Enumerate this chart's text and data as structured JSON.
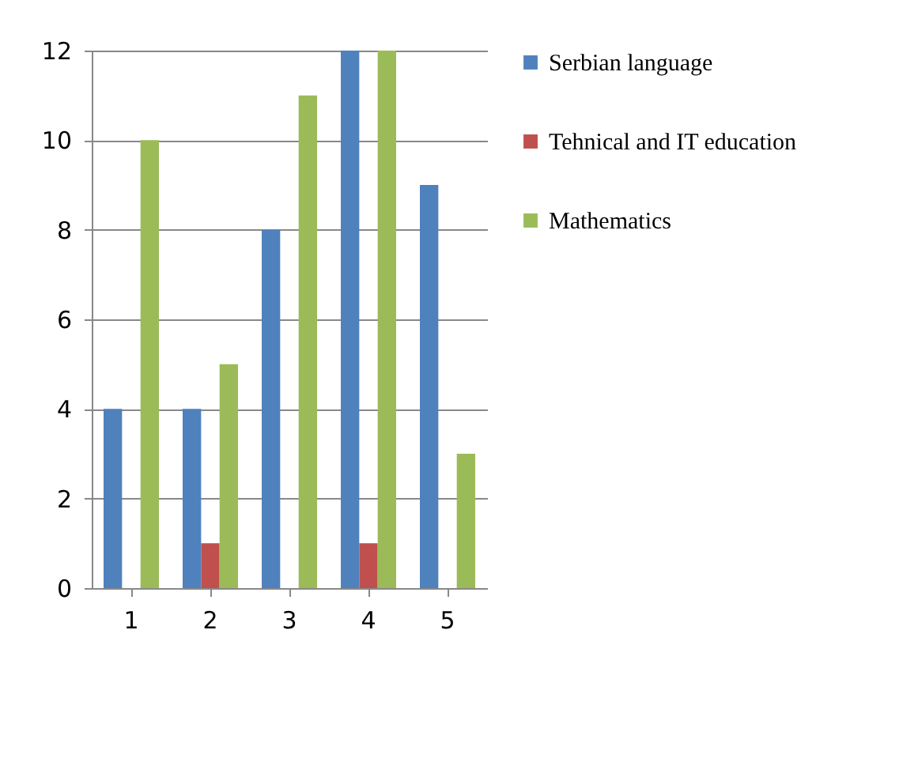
{
  "chart_data": {
    "type": "bar",
    "categories": [
      "1",
      "2",
      "3",
      "4",
      "5"
    ],
    "series": [
      {
        "name": "Serbian language",
        "color": "#4f81bd",
        "values": [
          4,
          4,
          8,
          12,
          9
        ]
      },
      {
        "name": "Tehnical and IT education",
        "color": "#c0504d",
        "values": [
          0,
          1,
          0,
          1,
          0
        ]
      },
      {
        "name": "Mathematics",
        "color": "#9bbb59",
        "values": [
          10,
          5,
          11,
          12,
          3
        ]
      }
    ],
    "ylim": [
      0,
      12
    ],
    "yticks": [
      0,
      2,
      4,
      6,
      8,
      10,
      12
    ],
    "grid": "y",
    "legend": "right"
  }
}
